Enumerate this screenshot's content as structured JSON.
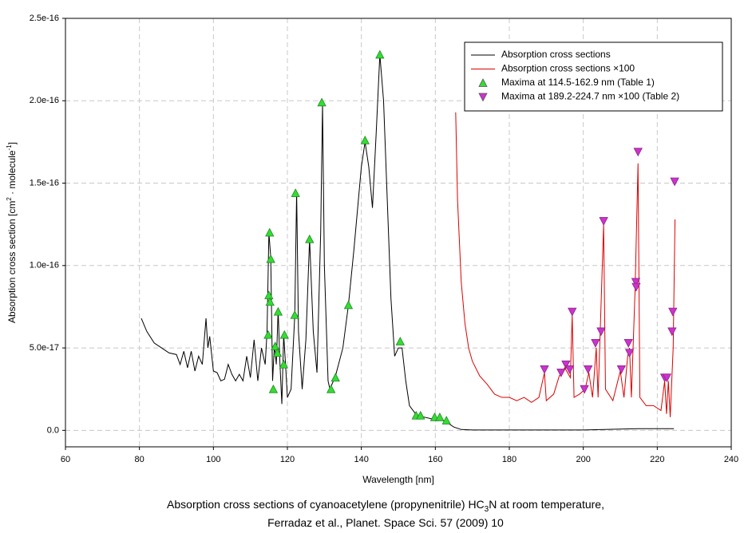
{
  "chart_data": {
    "type": "line",
    "caption": [
      [
        "Absorption cross sections of cyanoacetylene (propynenitrile) HC",
        "3",
        "N at room temperature,"
      ],
      [
        "Ferradaz et al., Planet. Space Sci. 57 (2009) 10"
      ]
    ],
    "x_label": "Wavelength [nm]",
    "y_label": [
      "Absorption cross section [cm",
      "2",
      " · molecule",
      "-1",
      "]"
    ],
    "xlim": [
      60,
      240
    ],
    "xticks": [
      60,
      80,
      100,
      120,
      140,
      160,
      180,
      200,
      220,
      240
    ],
    "ylim": [
      -1e-17,
      2.5e-16
    ],
    "yticks": [
      {
        "value": 0,
        "label": "0.0"
      },
      {
        "value": 5e-17,
        "label": "5.0e-17"
      },
      {
        "value": 1e-16,
        "label": "1.0e-16"
      },
      {
        "value": 1.5e-16,
        "label": "1.5e-16"
      },
      {
        "value": 2e-16,
        "label": "2.0e-16"
      },
      {
        "value": 2.5e-16,
        "label": "2.5e-16"
      }
    ],
    "grid": true,
    "legend": "upper right",
    "series": [
      {
        "name": "Absorption cross sections",
        "type": "line",
        "color": "#000000",
        "x": [
          80.5,
          82,
          84,
          86,
          88,
          90,
          91,
          92,
          93,
          94,
          95,
          96,
          97,
          98,
          98.5,
          99,
          100,
          101,
          102,
          103,
          104,
          105,
          106,
          107,
          108,
          109,
          110,
          111,
          112,
          113,
          114,
          114.5,
          115,
          115.5,
          116,
          116.5,
          117,
          117.5,
          118,
          118.5,
          119,
          119.5,
          120,
          121,
          122,
          122.5,
          123,
          124,
          125,
          126,
          127,
          128,
          129,
          129.5,
          130,
          131,
          131.5,
          133,
          135,
          136.5,
          138,
          140,
          141,
          142,
          143,
          144,
          145,
          146,
          147,
          148,
          149,
          150,
          151,
          152,
          153,
          155,
          157,
          159,
          161,
          163,
          165,
          167,
          170,
          200,
          215,
          224.5
        ],
        "values": [
          6.8e-17,
          6e-17,
          5.3e-17,
          5e-17,
          4.7e-17,
          4.6e-17,
          4e-17,
          4.8e-17,
          3.8e-17,
          4.8e-17,
          3.6e-17,
          4.5e-17,
          4e-17,
          6.8e-17,
          5e-17,
          5.7e-17,
          3.6e-17,
          3.5e-17,
          3e-17,
          3.1e-17,
          4e-17,
          3.4e-17,
          3e-17,
          3.4e-17,
          3e-17,
          4.5e-17,
          3.2e-17,
          5.5e-17,
          3e-17,
          5e-17,
          4e-17,
          6e-17,
          1.2e-16,
          1.05e-16,
          3e-17,
          5.2e-17,
          4e-17,
          7.3e-17,
          4e-17,
          1.6e-17,
          5.8e-17,
          4e-17,
          2e-17,
          2.5e-17,
          7e-17,
          1.45e-16,
          6e-17,
          2.5e-17,
          5.5e-17,
          1.16e-16,
          6e-17,
          3.5e-17,
          1.2e-16,
          1.98e-16,
          1e-16,
          3e-17,
          2.5e-17,
          3.3e-17,
          5e-17,
          7.6e-17,
          1.1e-16,
          1.6e-16,
          1.75e-16,
          1.6e-16,
          1.35e-16,
          1.8e-16,
          2.28e-16,
          2e-16,
          1.4e-16,
          8e-17,
          4.5e-17,
          5e-17,
          5e-17,
          3e-17,
          1.5e-17,
          9e-18,
          8e-18,
          7e-18,
          7e-18,
          5e-18,
          2e-18,
          5e-19,
          2e-19,
          2e-19,
          1e-18,
          1e-18
        ]
      },
      {
        "name": "Absorption cross sections ×100",
        "type": "line",
        "color": "#dd0000",
        "x": [
          165.5,
          166,
          167,
          168,
          169,
          170,
          172,
          174,
          176,
          178,
          180,
          182,
          184,
          186,
          188,
          189.5,
          190,
          192,
          193.5,
          195,
          196.5,
          197,
          197.5,
          199,
          200.5,
          201.5,
          202.5,
          203.5,
          204,
          205.5,
          206,
          208,
          210,
          211,
          212,
          212.5,
          213,
          214,
          214.8,
          215.3,
          217,
          219,
          221,
          222,
          222.5,
          223,
          223.5,
          224.3,
          224.8
        ],
        "values": [
          1.93e-16,
          1.4e-16,
          9e-17,
          6.5e-17,
          5e-17,
          4.2e-17,
          3.3e-17,
          2.8e-17,
          2.2e-17,
          2e-17,
          2e-17,
          1.8e-17,
          2e-17,
          1.7e-17,
          2e-17,
          3.5e-17,
          1.8e-17,
          2.2e-17,
          3.3e-17,
          3.8e-17,
          3.2e-17,
          7e-17,
          2e-17,
          2.2e-17,
          2.5e-17,
          3.5e-17,
          2e-17,
          5e-17,
          2e-17,
          1.25e-16,
          2.5e-17,
          1.8e-17,
          3.6e-17,
          2e-17,
          4.5e-17,
          5e-17,
          2e-17,
          8.5e-17,
          1.62e-16,
          2e-17,
          1.5e-17,
          1.5e-17,
          1.2e-17,
          3e-17,
          1e-17,
          3e-17,
          8e-18,
          5e-17,
          1.28e-16
        ]
      },
      {
        "name": "Maxima at 114.5-162.9 nm (Table 1)",
        "type": "scatter",
        "marker": "triangle-up",
        "color": "#33dd33",
        "x": [
          115.2,
          115.5,
          115,
          115.3,
          114.8,
          116.2,
          116.7,
          117.5,
          117.3,
          119.2,
          119,
          122.2,
          122,
          126,
          129.3,
          131.8,
          133,
          136.5,
          141,
          145,
          150.5,
          154.8,
          156,
          159.8,
          161.2,
          163
        ],
        "values": [
          1.2e-16,
          1.04e-16,
          8.2e-17,
          7.8e-17,
          5.8e-17,
          2.5e-17,
          5.1e-17,
          7.2e-17,
          4.7e-17,
          5.8e-17,
          4e-17,
          1.44e-16,
          7e-17,
          1.16e-16,
          1.99e-16,
          2.5e-17,
          3.2e-17,
          7.6e-17,
          1.76e-16,
          2.28e-16,
          5.4e-17,
          9e-18,
          9e-18,
          8e-18,
          8e-18,
          6e-18
        ]
      },
      {
        "name": "Maxima at 189.2-224.7 nm ×100 (Table 2)",
        "type": "scatter",
        "marker": "triangle-down",
        "color": "#cc33cc",
        "x": [
          189.5,
          194,
          195.3,
          196.3,
          197,
          200.3,
          201.3,
          203.3,
          204.8,
          205.5,
          210.3,
          212.2,
          212.5,
          214.2,
          214.3,
          214.8,
          222,
          222.6,
          224,
          224.2,
          224.7
        ],
        "values": [
          3.7e-17,
          3.5e-17,
          4e-17,
          3.7e-17,
          7.2e-17,
          2.5e-17,
          3.7e-17,
          5.3e-17,
          6e-17,
          1.27e-16,
          3.7e-17,
          5.3e-17,
          4.7e-17,
          9e-17,
          8.7e-17,
          1.69e-16,
          3.2e-17,
          3.2e-17,
          6e-17,
          7.2e-17,
          1.51e-16
        ]
      }
    ]
  }
}
